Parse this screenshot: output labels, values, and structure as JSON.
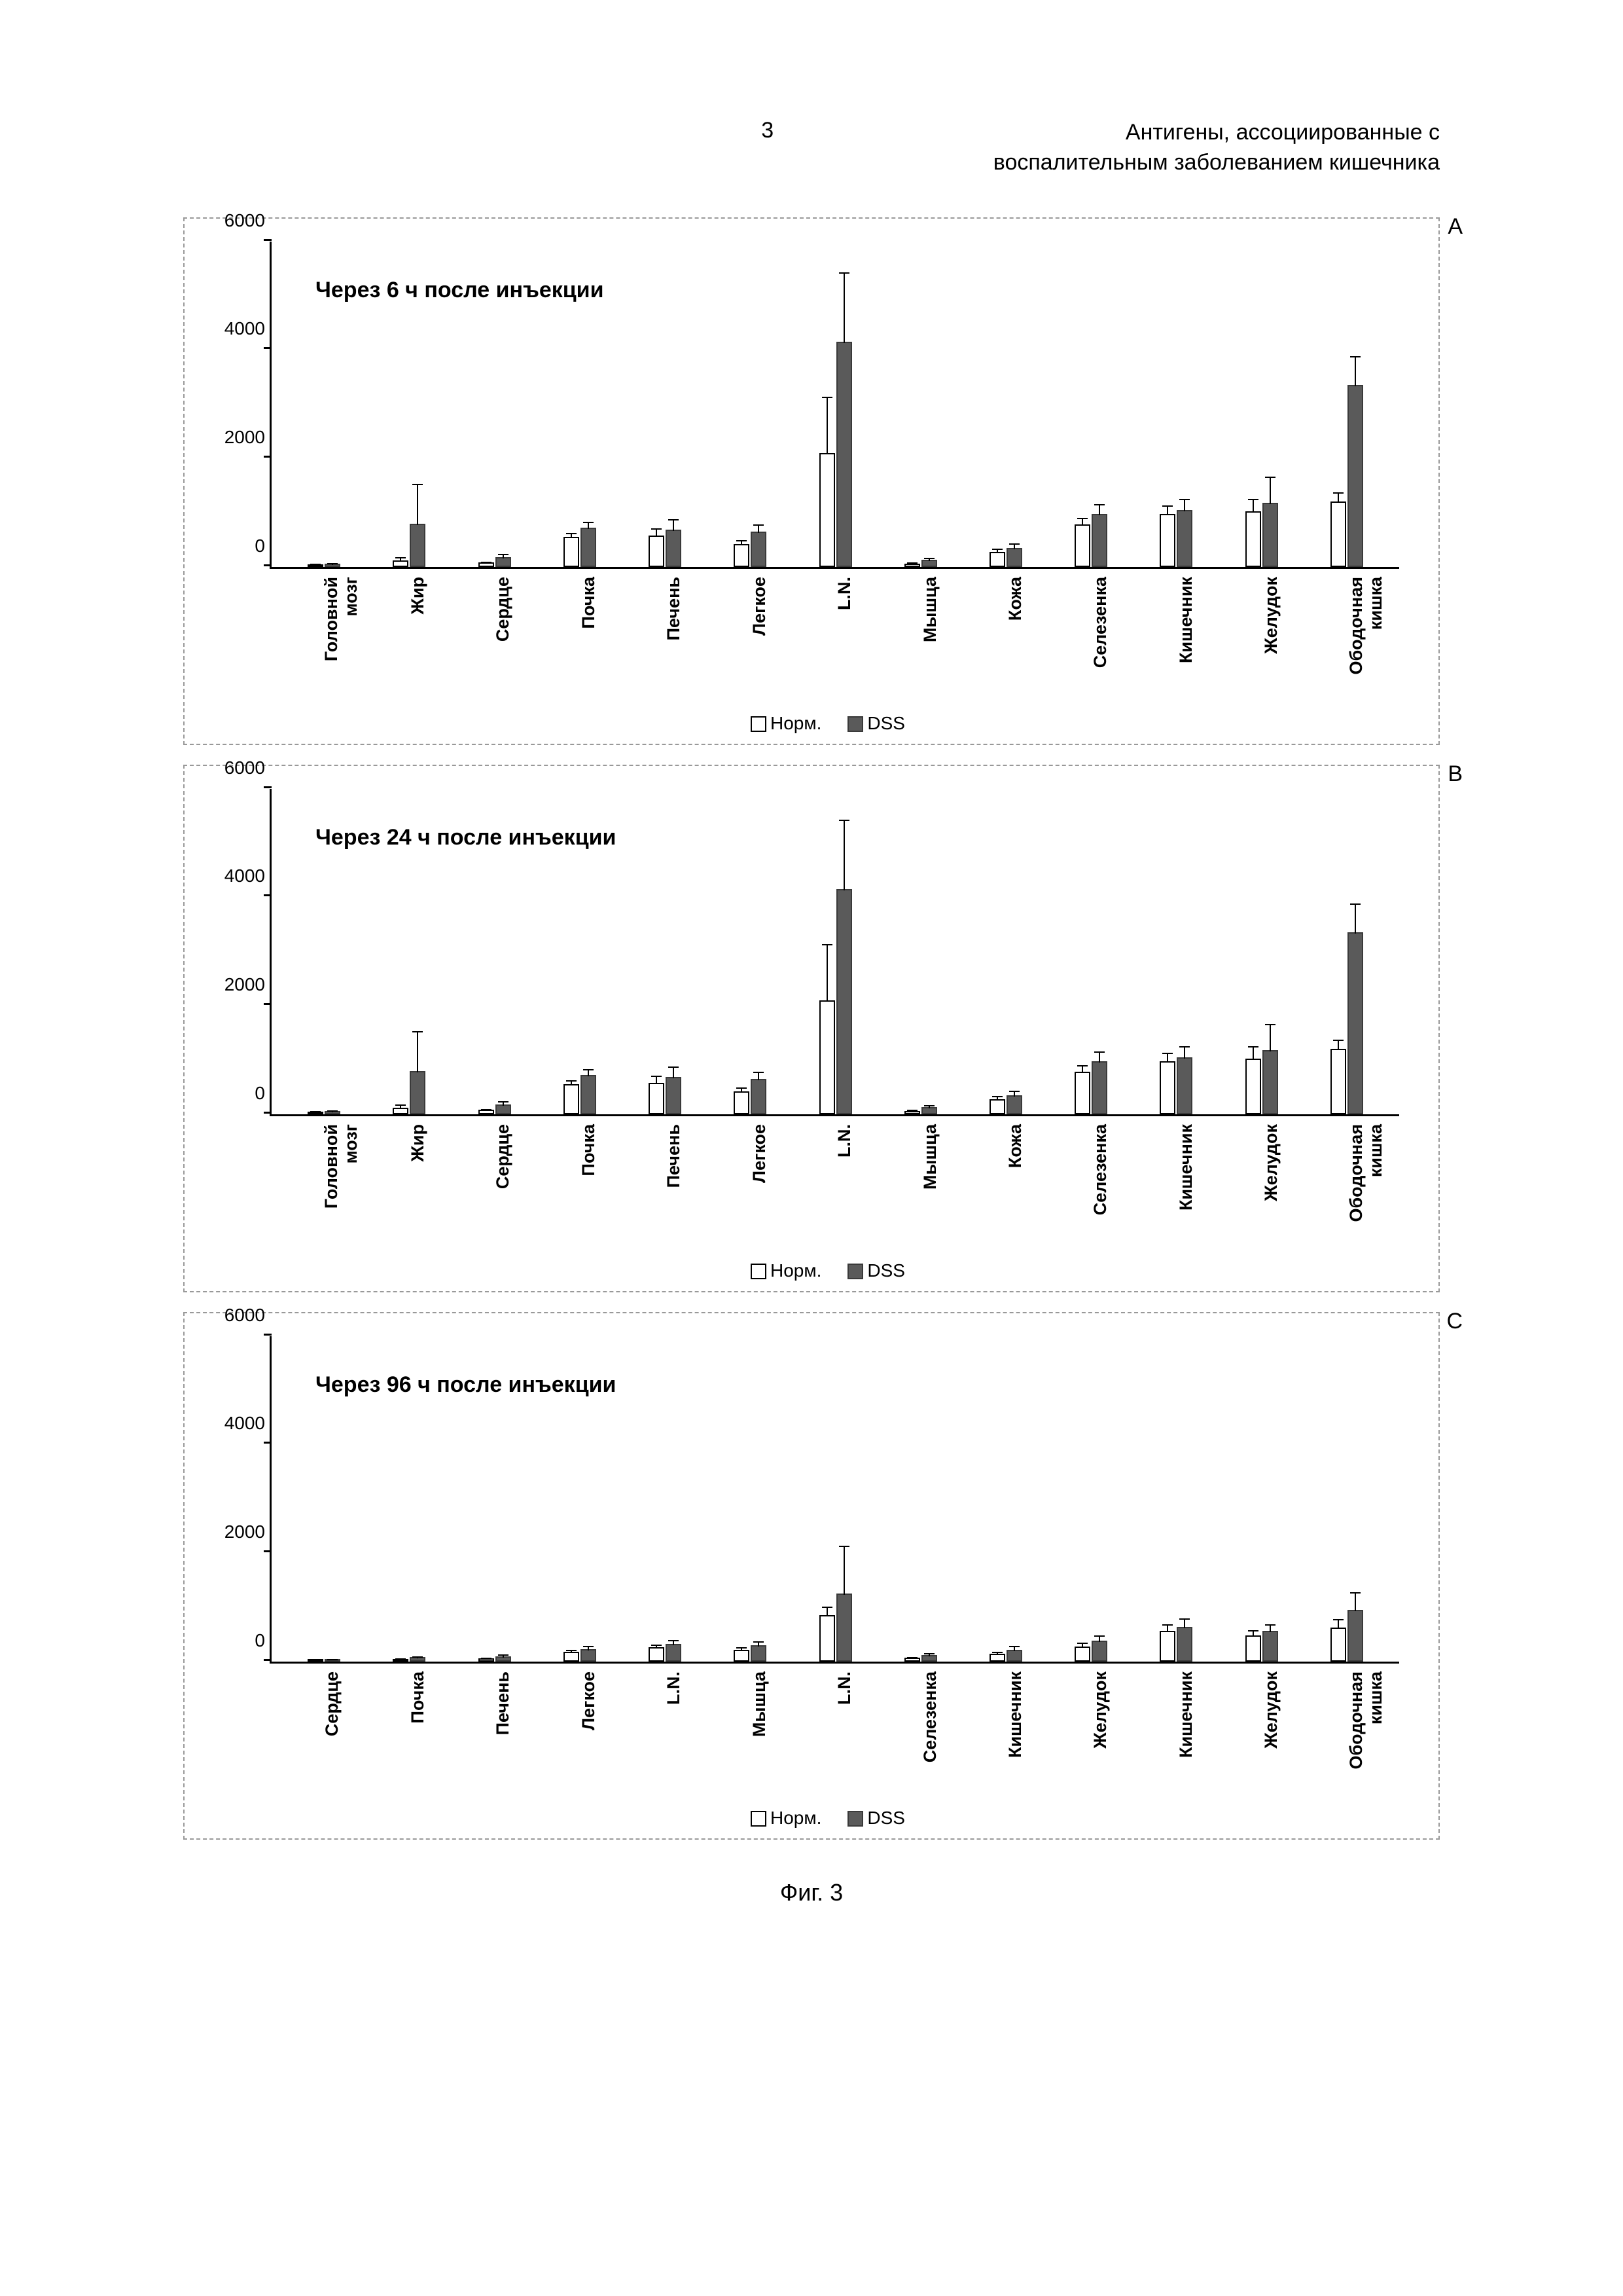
{
  "page_number": "3",
  "header_title_1": "Антигены, ассоциированные с",
  "header_title_2": "воспалительным заболеванием кишечника",
  "figure_caption": "Фиг. 3",
  "legend": {
    "norm": "Норм.",
    "dss": "DSS"
  },
  "y_axis": {
    "min": 0,
    "max": 6000,
    "ticks": [
      0,
      2000,
      4000,
      6000
    ]
  },
  "colors": {
    "norm_fill": "#ffffff",
    "norm_border": "#000000",
    "dss_fill": "#5a5a5a",
    "dss_border": "#3a3a3a",
    "panel_border": "#999999",
    "text": "#000000"
  },
  "panels": [
    {
      "letter": "A",
      "title": "Через 6 ч после инъекции",
      "categories": [
        "Головной\nмозг",
        "Жир",
        "Сердце",
        "Почка",
        "Печень",
        "Легкое",
        "L.N.",
        "Мышца",
        "Кожа",
        "Селезенка",
        "Кишечник",
        "Желудок",
        "Ободочная\nкишка"
      ],
      "norm": [
        50,
        120,
        80,
        550,
        580,
        420,
        2100,
        60,
        280,
        780,
        980,
        1020,
        1200
      ],
      "norm_err": [
        30,
        80,
        40,
        100,
        150,
        100,
        1050,
        40,
        80,
        150,
        180,
        250,
        200
      ],
      "dss": [
        60,
        800,
        180,
        720,
        680,
        650,
        4150,
        130,
        350,
        980,
        1050,
        1180,
        3350
      ],
      "dss_err": [
        30,
        750,
        80,
        130,
        220,
        150,
        1300,
        60,
        100,
        200,
        220,
        500,
        550
      ]
    },
    {
      "letter": "B",
      "title": "Через 24 ч после инъекции",
      "categories": [
        "Головной\nмозг",
        "Жир",
        "Сердце",
        "Почка",
        "Печень",
        "Легкое",
        "L.N.",
        "Мышца",
        "Кожа",
        "Селезенка",
        "Кишечник",
        "Желудок",
        "Ободочная\nкишка"
      ],
      "norm": [
        50,
        120,
        80,
        550,
        580,
        420,
        2100,
        60,
        280,
        780,
        980,
        1020,
        1200
      ],
      "norm_err": [
        30,
        80,
        40,
        100,
        150,
        100,
        1050,
        40,
        80,
        150,
        180,
        250,
        200
      ],
      "dss": [
        60,
        800,
        180,
        720,
        680,
        650,
        4150,
        130,
        350,
        980,
        1050,
        1180,
        3350
      ],
      "dss_err": [
        30,
        750,
        80,
        130,
        220,
        150,
        1300,
        60,
        100,
        200,
        220,
        500,
        550
      ]
    },
    {
      "letter": "C",
      "title": "Через 96 ч после инъекции",
      "categories": [
        "Сердце",
        "Почка",
        "Печень",
        "Легкое",
        "L.N.",
        "Мышца",
        "L.N.",
        "Селезенка",
        "Кишечник",
        "Желудок",
        "Кишечник",
        "Желудок",
        "Ободочная\nкишка"
      ],
      "norm": [
        30,
        50,
        60,
        180,
        260,
        220,
        850,
        70,
        140,
        280,
        560,
        480,
        620
      ],
      "norm_err": [
        20,
        30,
        30,
        60,
        80,
        70,
        180,
        40,
        60,
        90,
        150,
        120,
        180
      ],
      "dss": [
        40,
        80,
        100,
        230,
        320,
        300,
        1250,
        120,
        220,
        380,
        640,
        560,
        950
      ],
      "dss_err": [
        20,
        40,
        50,
        80,
        100,
        90,
        900,
        60,
        90,
        120,
        180,
        150,
        350
      ]
    }
  ]
}
